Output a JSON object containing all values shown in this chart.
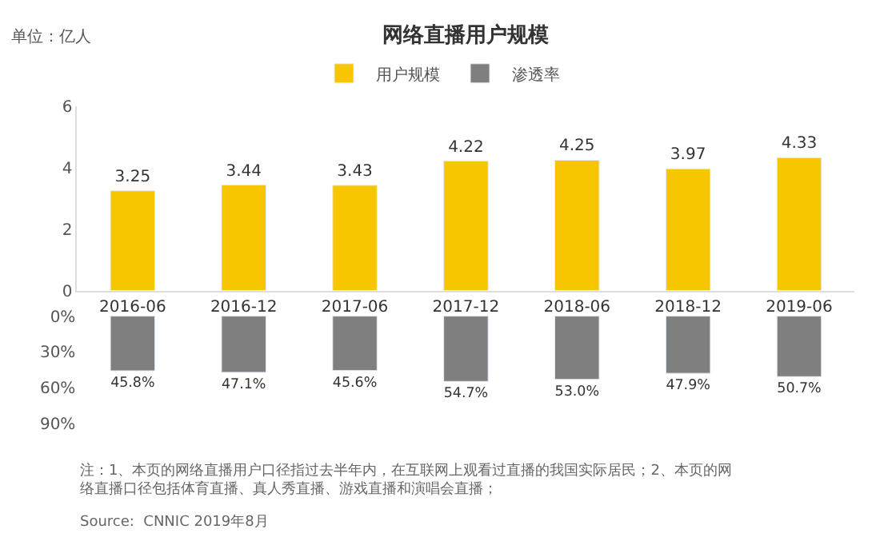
{
  "chart_data": [
    {
      "type": "bar",
      "title": "网络直播用户规模",
      "ylabel": "单位：亿人",
      "categories": [
        "2016-06",
        "2016-12",
        "2017-06",
        "2017-12",
        "2018-06",
        "2018-12",
        "2019-06"
      ],
      "series": [
        {
          "name": "用户规模",
          "color": "#f7c600",
          "values": [
            3.25,
            3.44,
            3.43,
            4.22,
            4.25,
            3.97,
            4.33
          ]
        }
      ],
      "ylim": [
        0,
        6
      ],
      "yticks": [
        0,
        2,
        4,
        6
      ],
      "data_labels": true,
      "grid": false,
      "legend": "top"
    },
    {
      "type": "bar",
      "categories": [
        "2016-06",
        "2016-12",
        "2017-06",
        "2017-12",
        "2018-06",
        "2018-12",
        "2019-06"
      ],
      "series": [
        {
          "name": "渗透率",
          "color": "#7f7f7f",
          "values": [
            45.8,
            47.1,
            45.6,
            54.7,
            53.0,
            47.9,
            50.7
          ],
          "value_labels": [
            "45.8%",
            "47.1%",
            "45.6%",
            "54.7%",
            "53.0%",
            "47.9%",
            "50.7%"
          ]
        }
      ],
      "ylim": [
        90,
        0
      ],
      "yticks": [
        {
          "value": 0,
          "label": "0%"
        },
        {
          "value": 30,
          "label": "30%"
        },
        {
          "value": 60,
          "label": "60%"
        },
        {
          "value": 90,
          "label": "90%"
        }
      ],
      "tick_labels": "y",
      "grid": false,
      "legend": "top",
      "annotations": [
        "注：1、本页的网络直播用户口径指过去半年内，在互联网上观看过直播的我国实际居民；2、本页的网络直播口径包括体育直播、真人秀直播、游戏直播和演唱会直播；",
        "Source:  CNNIC 2019年8月"
      ]
    }
  ]
}
